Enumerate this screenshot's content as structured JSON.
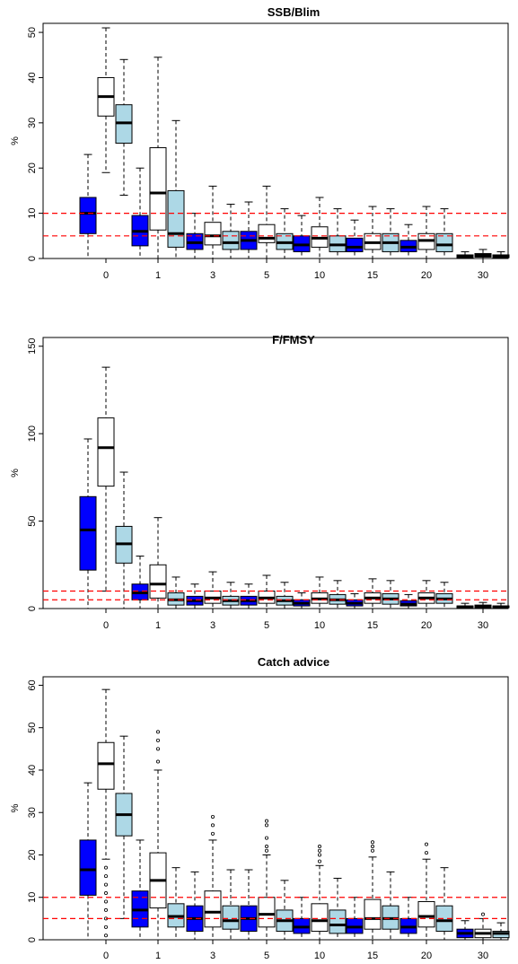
{
  "colors": {
    "dark": "#0000ff",
    "white": "#ffffff",
    "light": "#add8e6",
    "refline": "#ff0000",
    "stroke": "#000000"
  },
  "chart_data": [
    {
      "type": "box",
      "title": "SSB/Blim",
      "ylabel": "%",
      "ylim": [
        0,
        52
      ],
      "yticks": [
        0,
        10,
        20,
        30,
        40,
        50
      ],
      "categories": [
        "0",
        "1",
        "3",
        "5",
        "10",
        "15",
        "20",
        "30"
      ],
      "reference_lines": [
        5,
        10
      ],
      "groups": [
        [
          {
            "q1": 5.5,
            "median": 10,
            "q3": 13.5,
            "low": 0,
            "high": 23,
            "outliers": []
          },
          {
            "q1": 31.5,
            "median": 35.8,
            "q3": 40,
            "low": 19,
            "high": 51,
            "outliers": []
          },
          {
            "q1": 25.5,
            "median": 30,
            "q3": 34,
            "low": 14,
            "high": 44,
            "outliers": []
          }
        ],
        [
          {
            "q1": 2.8,
            "median": 6,
            "q3": 9.5,
            "low": 0,
            "high": 20,
            "outliers": []
          },
          {
            "q1": 6.3,
            "median": 14.5,
            "q3": 24.5,
            "low": 0,
            "high": 44.5,
            "outliers": []
          },
          {
            "q1": 2.5,
            "median": 5.5,
            "q3": 15,
            "low": 0,
            "high": 30.5,
            "outliers": []
          }
        ],
        [
          {
            "q1": 2,
            "median": 3.5,
            "q3": 5.5,
            "low": 0,
            "high": 10,
            "outliers": []
          },
          {
            "q1": 3,
            "median": 5,
            "q3": 8,
            "low": 0,
            "high": 16,
            "outliers": []
          },
          {
            "q1": 2,
            "median": 3.5,
            "q3": 6,
            "low": 0,
            "high": 12,
            "outliers": []
          }
        ],
        [
          {
            "q1": 2,
            "median": 4,
            "q3": 6,
            "low": 0,
            "high": 12.5,
            "outliers": []
          },
          {
            "q1": 3.5,
            "median": 4.5,
            "q3": 7.5,
            "low": 0,
            "high": 16,
            "outliers": []
          },
          {
            "q1": 2,
            "median": 3.5,
            "q3": 5.5,
            "low": 0,
            "high": 11,
            "outliers": []
          }
        ],
        [
          {
            "q1": 1.5,
            "median": 3,
            "q3": 5,
            "low": 0,
            "high": 9.5,
            "outliers": []
          },
          {
            "q1": 2.5,
            "median": 4.5,
            "q3": 7,
            "low": 0,
            "high": 13.5,
            "outliers": []
          },
          {
            "q1": 1.5,
            "median": 3,
            "q3": 5,
            "low": 0,
            "high": 11,
            "outliers": []
          }
        ],
        [
          {
            "q1": 1.5,
            "median": 2.5,
            "q3": 4.5,
            "low": 0,
            "high": 8.5,
            "outliers": []
          },
          {
            "q1": 2,
            "median": 3.5,
            "q3": 5.5,
            "low": 0,
            "high": 11.5,
            "outliers": []
          },
          {
            "q1": 1.5,
            "median": 3.5,
            "q3": 5.5,
            "low": 0,
            "high": 11,
            "outliers": []
          }
        ],
        [
          {
            "q1": 1.5,
            "median": 2.5,
            "q3": 4,
            "low": 0,
            "high": 7.5,
            "outliers": []
          },
          {
            "q1": 2,
            "median": 4,
            "q3": 5.5,
            "low": 0,
            "high": 11.5,
            "outliers": []
          },
          {
            "q1": 1.5,
            "median": 3,
            "q3": 5.5,
            "low": 0,
            "high": 11,
            "outliers": []
          }
        ],
        [
          {
            "q1": 0.2,
            "median": 0.5,
            "q3": 0.8,
            "low": 0,
            "high": 1.5,
            "outliers": []
          },
          {
            "q1": 0.3,
            "median": 0.7,
            "q3": 1.1,
            "low": 0,
            "high": 2,
            "outliers": []
          },
          {
            "q1": 0.2,
            "median": 0.5,
            "q3": 0.8,
            "low": 0,
            "high": 1.5,
            "outliers": []
          }
        ]
      ]
    },
    {
      "type": "box",
      "title": "F/FMSY",
      "ylabel": "%",
      "ylim": [
        0,
        155
      ],
      "yticks": [
        0,
        50,
        100,
        150
      ],
      "categories": [
        "0",
        "1",
        "3",
        "5",
        "10",
        "15",
        "20",
        "30"
      ],
      "reference_lines": [
        5,
        10
      ],
      "groups": [
        [
          {
            "q1": 22,
            "median": 45,
            "q3": 64,
            "low": 0,
            "high": 97,
            "outliers": []
          },
          {
            "q1": 70,
            "median": 92,
            "q3": 109,
            "low": 10,
            "high": 138,
            "outliers": []
          },
          {
            "q1": 26,
            "median": 37,
            "q3": 47,
            "low": 0,
            "high": 78,
            "outliers": []
          }
        ],
        [
          {
            "q1": 5,
            "median": 9,
            "q3": 14,
            "low": 0,
            "high": 30,
            "outliers": []
          },
          {
            "q1": 6,
            "median": 14,
            "q3": 25,
            "low": 0,
            "high": 52,
            "outliers": []
          },
          {
            "q1": 2,
            "median": 5,
            "q3": 9,
            "low": 0,
            "high": 18,
            "outliers": []
          }
        ],
        [
          {
            "q1": 2,
            "median": 4.5,
            "q3": 7,
            "low": 0,
            "high": 14,
            "outliers": []
          },
          {
            "q1": 3,
            "median": 6,
            "q3": 10,
            "low": 0,
            "high": 21,
            "outliers": []
          },
          {
            "q1": 2,
            "median": 4.5,
            "q3": 7,
            "low": 0,
            "high": 15,
            "outliers": []
          }
        ],
        [
          {
            "q1": 2,
            "median": 4.5,
            "q3": 7,
            "low": 0,
            "high": 14,
            "outliers": []
          },
          {
            "q1": 3,
            "median": 6,
            "q3": 10,
            "low": 0,
            "high": 19,
            "outliers": []
          },
          {
            "q1": 2,
            "median": 4.5,
            "q3": 7,
            "low": 0,
            "high": 15,
            "outliers": []
          }
        ],
        [
          {
            "q1": 1.5,
            "median": 3,
            "q3": 5,
            "low": 0,
            "high": 9,
            "outliers": []
          },
          {
            "q1": 3,
            "median": 5.5,
            "q3": 9,
            "low": 0,
            "high": 18,
            "outliers": []
          },
          {
            "q1": 2.5,
            "median": 5,
            "q3": 8,
            "low": 0,
            "high": 16,
            "outliers": []
          }
        ],
        [
          {
            "q1": 1.5,
            "median": 3,
            "q3": 5,
            "low": 0,
            "high": 8.5,
            "outliers": []
          },
          {
            "q1": 3,
            "median": 6,
            "q3": 9,
            "low": 0,
            "high": 17,
            "outliers": []
          },
          {
            "q1": 2.5,
            "median": 5.5,
            "q3": 8.5,
            "low": 0,
            "high": 16,
            "outliers": []
          }
        ],
        [
          {
            "q1": 1.5,
            "median": 2.5,
            "q3": 4.5,
            "low": 0,
            "high": 8,
            "outliers": []
          },
          {
            "q1": 3,
            "median": 6,
            "q3": 9,
            "low": 0,
            "high": 16,
            "outliers": []
          },
          {
            "q1": 3,
            "median": 5.5,
            "q3": 8.5,
            "low": 0,
            "high": 15,
            "outliers": []
          }
        ],
        [
          {
            "q1": 0.5,
            "median": 1,
            "q3": 1.5,
            "low": 0,
            "high": 3,
            "outliers": []
          },
          {
            "q1": 0.5,
            "median": 1,
            "q3": 2,
            "low": 0,
            "high": 3.5,
            "outliers": []
          },
          {
            "q1": 0.5,
            "median": 1,
            "q3": 1.5,
            "low": 0,
            "high": 3,
            "outliers": []
          }
        ]
      ]
    },
    {
      "type": "box",
      "title": "Catch advice",
      "ylabel": "%",
      "ylim": [
        0,
        62
      ],
      "yticks": [
        0,
        10,
        20,
        30,
        40,
        50,
        60
      ],
      "categories": [
        "0",
        "1",
        "3",
        "5",
        "10",
        "15",
        "20",
        "30"
      ],
      "reference_lines": [
        5,
        10
      ],
      "groups": [
        [
          {
            "q1": 10.5,
            "median": 16.5,
            "q3": 23.5,
            "low": 0,
            "high": 37,
            "outliers": []
          },
          {
            "q1": 35.5,
            "median": 41.5,
            "q3": 46.5,
            "low": 19,
            "high": 59,
            "outliers": [
              1,
              3,
              5,
              7,
              9,
              11,
              13,
              15,
              17
            ]
          },
          {
            "q1": 24.5,
            "median": 29.5,
            "q3": 34.5,
            "low": 5,
            "high": 48,
            "outliers": []
          }
        ],
        [
          {
            "q1": 3,
            "median": 7,
            "q3": 11.5,
            "low": 0,
            "high": 23.5,
            "outliers": []
          },
          {
            "q1": 7.5,
            "median": 14,
            "q3": 20.5,
            "low": 0,
            "high": 40,
            "outliers": [
              42,
              45,
              47,
              49
            ]
          },
          {
            "q1": 3,
            "median": 5.5,
            "q3": 8.5,
            "low": 0,
            "high": 17,
            "outliers": []
          }
        ],
        [
          {
            "q1": 2,
            "median": 5,
            "q3": 8,
            "low": 0,
            "high": 16,
            "outliers": []
          },
          {
            "q1": 3,
            "median": 6.5,
            "q3": 11.5,
            "low": 0,
            "high": 23.5,
            "outliers": [
              25,
              27,
              29
            ]
          },
          {
            "q1": 2.5,
            "median": 4.5,
            "q3": 8,
            "low": 0,
            "high": 16.5,
            "outliers": []
          }
        ],
        [
          {
            "q1": 2,
            "median": 5,
            "q3": 8,
            "low": 0,
            "high": 16.5,
            "outliers": []
          },
          {
            "q1": 3,
            "median": 6,
            "q3": 10,
            "low": 0,
            "high": 20,
            "outliers": [
              21,
              22,
              24,
              27,
              28
            ]
          },
          {
            "q1": 2,
            "median": 4.5,
            "q3": 7,
            "low": 0,
            "high": 14,
            "outliers": []
          }
        ],
        [
          {
            "q1": 1.5,
            "median": 3,
            "q3": 5,
            "low": 0,
            "high": 10,
            "outliers": []
          },
          {
            "q1": 2,
            "median": 4.5,
            "q3": 8.5,
            "low": 0,
            "high": 17.5,
            "outliers": [
              18.5,
              20,
              21,
              22
            ]
          },
          {
            "q1": 1.5,
            "median": 3.5,
            "q3": 7,
            "low": 0,
            "high": 14.5,
            "outliers": []
          }
        ],
        [
          {
            "q1": 1.5,
            "median": 3,
            "q3": 5,
            "low": 0,
            "high": 10,
            "outliers": []
          },
          {
            "q1": 2.5,
            "median": 5,
            "q3": 9.5,
            "low": 0,
            "high": 19.5,
            "outliers": [
              21,
              22,
              23
            ]
          },
          {
            "q1": 2.5,
            "median": 5,
            "q3": 8,
            "low": 0,
            "high": 16,
            "outliers": []
          }
        ],
        [
          {
            "q1": 1.5,
            "median": 3,
            "q3": 5,
            "low": 0,
            "high": 10,
            "outliers": []
          },
          {
            "q1": 3,
            "median": 5.5,
            "q3": 9,
            "low": 0,
            "high": 19,
            "outliers": [
              20.5,
              22.5
            ]
          },
          {
            "q1": 2,
            "median": 4.5,
            "q3": 8,
            "low": 0,
            "high": 17,
            "outliers": []
          }
        ],
        [
          {
            "q1": 0.5,
            "median": 1.5,
            "q3": 2.5,
            "low": 0,
            "high": 4.5,
            "outliers": []
          },
          {
            "q1": 0.5,
            "median": 1.5,
            "q3": 2.5,
            "low": 0,
            "high": 5,
            "outliers": [
              6
            ]
          },
          {
            "q1": 0.5,
            "median": 1.5,
            "q3": 2,
            "low": 0,
            "high": 4,
            "outliers": []
          }
        ]
      ]
    }
  ]
}
